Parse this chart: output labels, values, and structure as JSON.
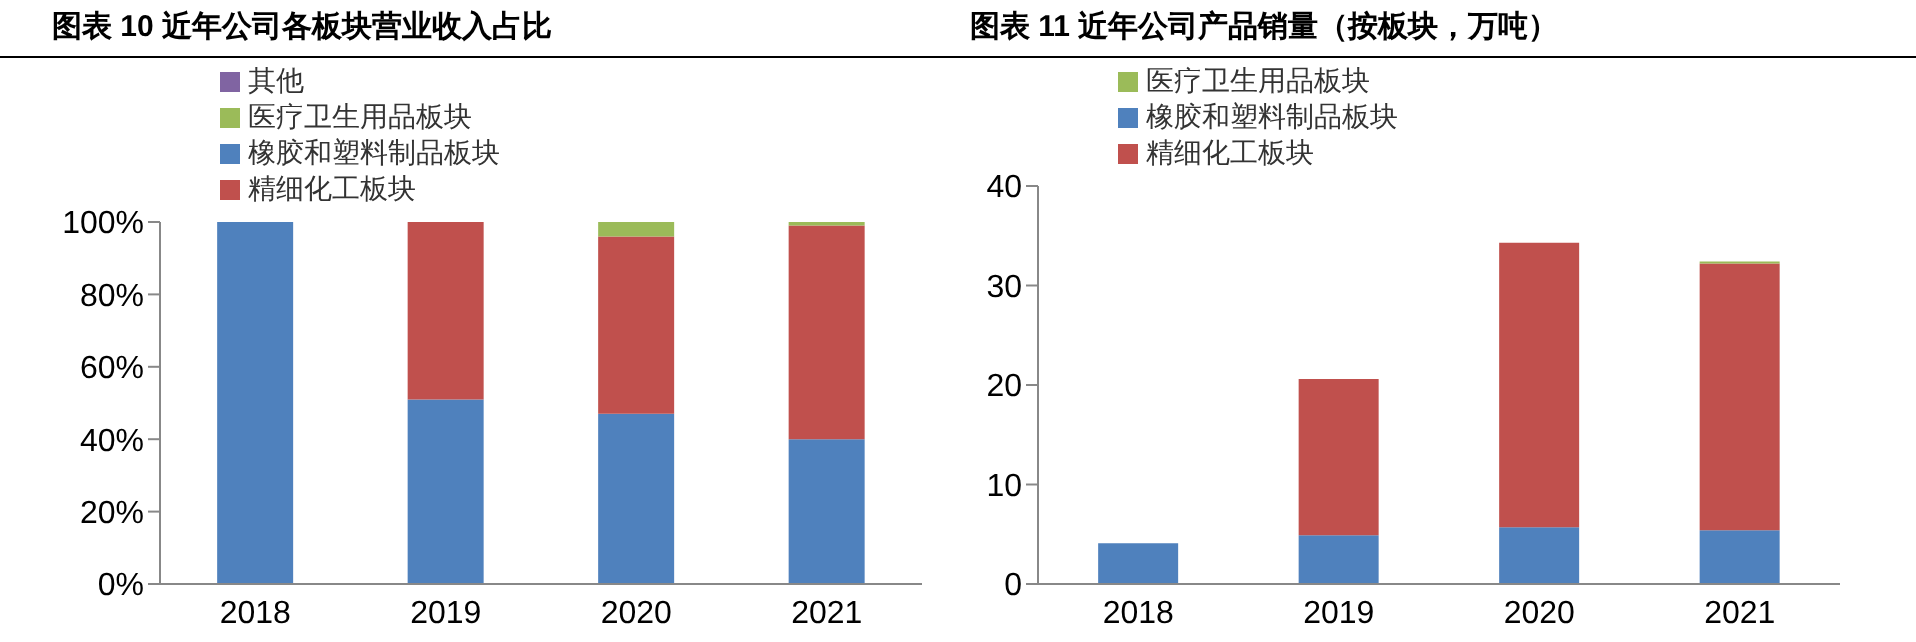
{
  "chart_data": [
    {
      "type": "bar",
      "title": "图表 10 近年公司各板块营业收入占比",
      "categories": [
        "2018",
        "2019",
        "2020",
        "2021"
      ],
      "stacked": true,
      "series": [
        {
          "name": "橡胶和塑料制品板块",
          "color": "#4f81bd",
          "values": [
            100,
            51,
            47,
            40
          ]
        },
        {
          "name": "精细化工板块",
          "color": "#c0504d",
          "values": [
            0,
            49,
            49,
            59
          ]
        },
        {
          "name": "医疗卫生用品板块",
          "color": "#9bbb59",
          "values": [
            0,
            0,
            4,
            1
          ]
        },
        {
          "name": "其他",
          "color": "#8064a2",
          "values": [
            0,
            0,
            0,
            0
          ]
        }
      ],
      "ylim": [
        0,
        100
      ],
      "yticks": [
        {
          "value": 0,
          "label": "0%"
        },
        {
          "value": 20,
          "label": "20%"
        },
        {
          "value": 40,
          "label": "40%"
        },
        {
          "value": 60,
          "label": "60%"
        },
        {
          "value": 80,
          "label": "80%"
        },
        {
          "value": 100,
          "label": "100%"
        }
      ],
      "grid": false,
      "legend": "top"
    },
    {
      "type": "bar",
      "title": "图表 11 近年公司产品销量（按板块，万吨）",
      "categories": [
        "2018",
        "2019",
        "2020",
        "2021"
      ],
      "stacked": true,
      "series": [
        {
          "name": "橡胶和塑料制品板块",
          "color": "#4f81bd",
          "values": [
            4.1,
            4.9,
            5.7,
            5.4
          ]
        },
        {
          "name": "精细化工板块",
          "color": "#c0504d",
          "values": [
            0,
            15.7,
            28.6,
            26.8
          ]
        },
        {
          "name": "医疗卫生用品板块",
          "color": "#9bbb59",
          "values": [
            0,
            0,
            0,
            0.2
          ]
        }
      ],
      "ylim": [
        0,
        40
      ],
      "yticks": [
        0,
        10,
        20,
        30,
        40
      ],
      "grid": false,
      "legend": "top"
    }
  ]
}
